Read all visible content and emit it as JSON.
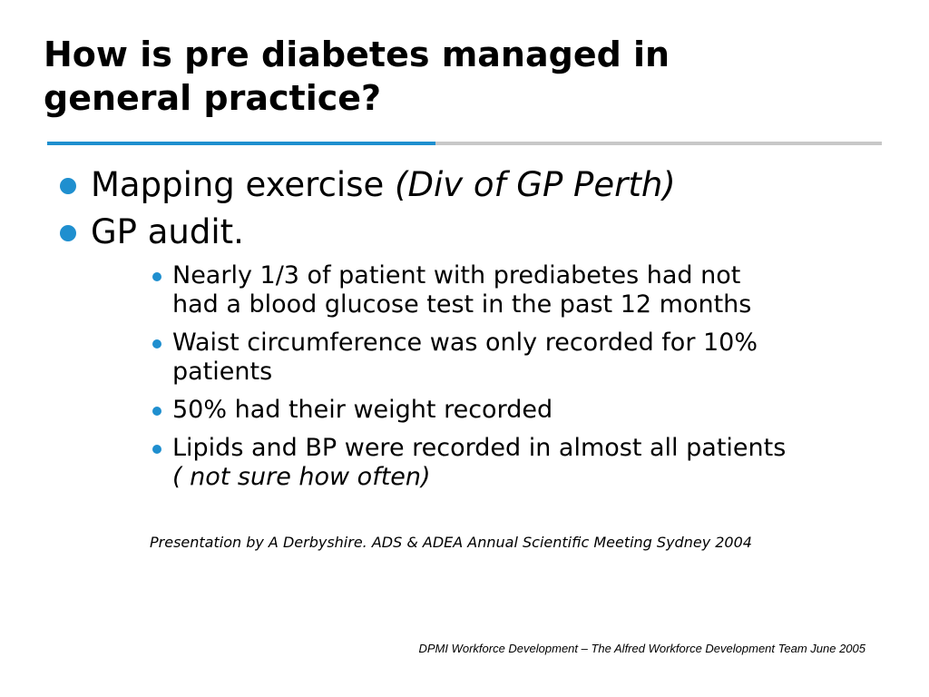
{
  "slide": {
    "title_lines": [
      "How is pre diabetes managed in",
      "general practice?"
    ],
    "bullets": [
      {
        "text": "Mapping exercise ",
        "emphasis": "(Div of GP Perth)"
      },
      {
        "text": "GP audit.",
        "emphasis": ""
      }
    ],
    "sub_bullets": [
      {
        "lines": [
          "Nearly 1/3 of patient with prediabetes had not",
          "had a blood glucose test in the past 12 months"
        ]
      },
      {
        "lines": [
          "Waist circumference was only recorded for 10%",
          "patients"
        ]
      },
      {
        "lines": [
          "50% had their weight recorded"
        ]
      },
      {
        "lines": [
          "Lipids and BP were recorded in almost all patients",
          "( not sure how often)"
        ]
      }
    ],
    "citation": "Presentation by A Derbyshire.  ADS & ADEA Annual Scientific Meeting Sydney 2004",
    "footer": "DPMI Workforce Development – The Alfred Workforce Development Team June 2005"
  },
  "colors": {
    "accent": "#1f8fcf",
    "rule_gray": "#c8c8c8",
    "text": "#000000",
    "background": "#ffffff"
  },
  "icons": {
    "bullet": "filled-circle-bullet-icon"
  }
}
